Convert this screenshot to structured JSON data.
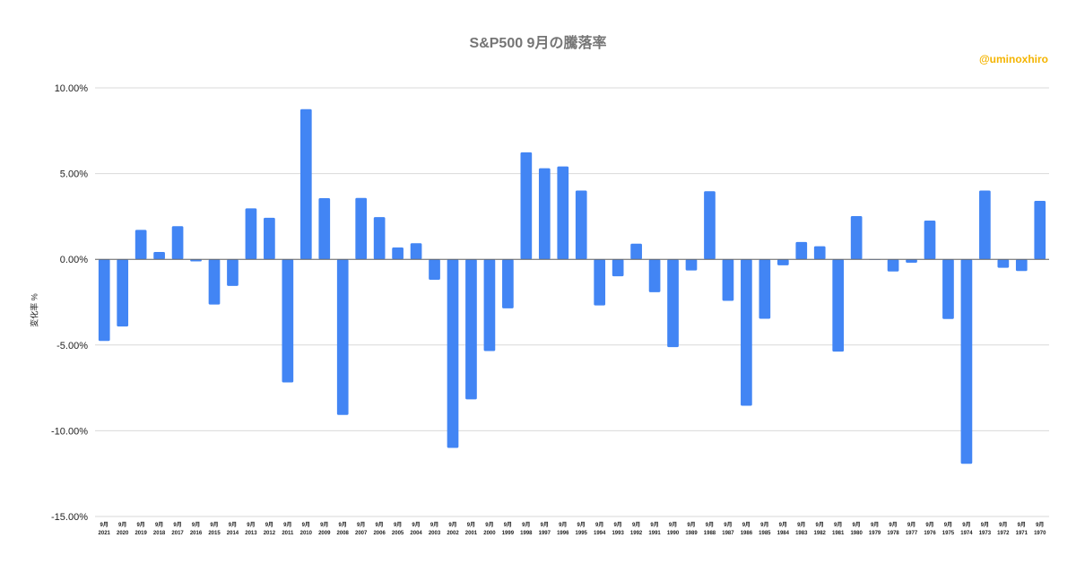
{
  "chart_data": {
    "type": "bar",
    "title": "S&P500  9月の騰落率",
    "credit": "@uminoxhiro",
    "xlabel": "",
    "ylabel": "変化率 %",
    "ylim": [
      -15,
      10
    ],
    "yticks": [
      "10.00%",
      "5.00%",
      "0.00%",
      "-5.00%",
      "-10.00%",
      "-15.00%"
    ],
    "ytick_values": [
      10,
      5,
      0,
      -5,
      -10,
      -15
    ],
    "grid": true,
    "legend": "none",
    "bar_color": "#4285f4",
    "month_label": "9月",
    "categories": [
      "2021",
      "2020",
      "2019",
      "2018",
      "2017",
      "2016",
      "2015",
      "2014",
      "2013",
      "2012",
      "2011",
      "2010",
      "2009",
      "2008",
      "2007",
      "2006",
      "2005",
      "2004",
      "2003",
      "2002",
      "2001",
      "2000",
      "1999",
      "1998",
      "1997",
      "1996",
      "1995",
      "1994",
      "1993",
      "1992",
      "1991",
      "1990",
      "1989",
      "1988",
      "1987",
      "1986",
      "1985",
      "1984",
      "1983",
      "1982",
      "1981",
      "1980",
      "1979",
      "1978",
      "1977",
      "1976",
      "1975",
      "1974",
      "1973",
      "1972",
      "1971",
      "1970"
    ],
    "values": [
      -4.76,
      -3.92,
      1.72,
      0.43,
      1.93,
      -0.12,
      -2.64,
      -1.55,
      2.97,
      2.42,
      -7.18,
      8.76,
      3.57,
      -9.08,
      3.58,
      2.46,
      0.69,
      0.94,
      -1.19,
      -11.0,
      -8.17,
      -5.35,
      -2.86,
      6.24,
      5.31,
      5.42,
      4.01,
      -2.69,
      -0.99,
      0.91,
      -1.92,
      -5.12,
      -0.65,
      3.97,
      -2.42,
      -8.54,
      -3.47,
      -0.35,
      1.01,
      0.76,
      -5.38,
      2.52,
      0.0,
      -0.71,
      -0.2,
      2.26,
      -3.48,
      -11.93,
      4.01,
      -0.49,
      -0.68,
      3.41
    ]
  }
}
